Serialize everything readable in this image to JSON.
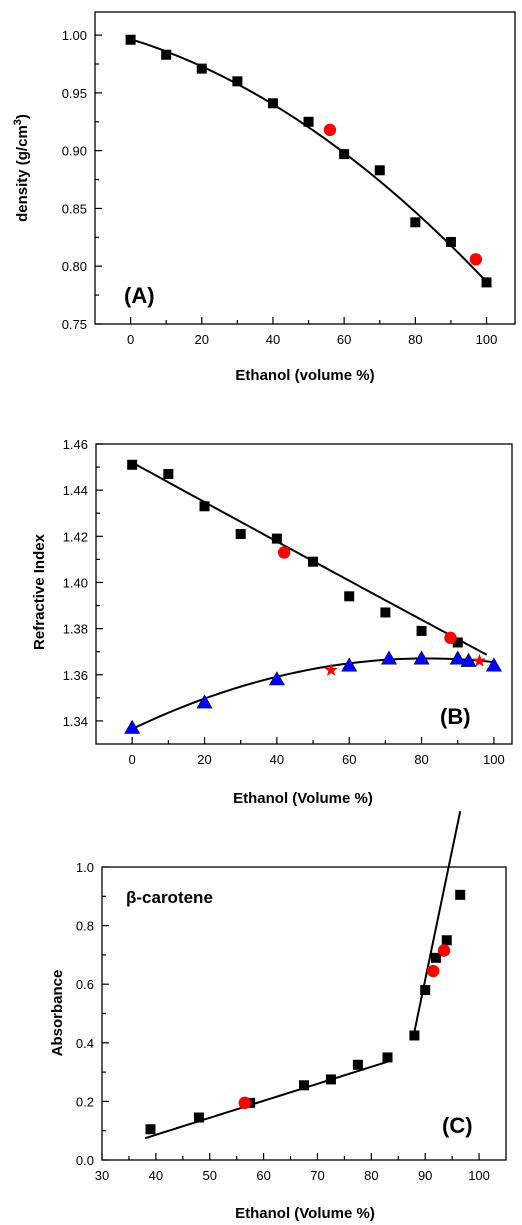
{
  "chart_data": [
    {
      "type": "scatter",
      "panel_label": "(A)",
      "xlabel": "Ethanol (volume %)",
      "ylabel_main": "density (g/cm",
      "ylabel_sup": "3",
      "ylabel_close": ")",
      "xlim": [
        -10,
        108
      ],
      "ylim": [
        0.75,
        1.02
      ],
      "xticks": [
        0,
        20,
        40,
        60,
        80,
        100
      ],
      "yticks": [
        0.75,
        0.8,
        0.85,
        0.9,
        0.95,
        1.0
      ],
      "xtick_labels": [
        "0",
        "20",
        "40",
        "60",
        "80",
        "100"
      ],
      "ytick_labels": [
        "0.75",
        "0.80",
        "0.85",
        "0.90",
        "0.95",
        "1.00"
      ],
      "series": [
        {
          "marker": "square",
          "color": "#000000",
          "x": [
            0,
            10,
            20,
            30,
            40,
            50,
            60,
            70,
            80,
            90,
            100
          ],
          "y": [
            0.996,
            0.983,
            0.971,
            0.96,
            0.941,
            0.925,
            0.897,
            0.883,
            0.838,
            0.821,
            0.786
          ]
        },
        {
          "marker": "circle",
          "color": "#ff0000",
          "x": [
            56,
            97
          ],
          "y": [
            0.918,
            0.806
          ]
        }
      ],
      "fits": [
        {
          "x": [
            0,
            100
          ],
          "poly": [
            0.9965,
            -0.00095,
            -1.15e-05
          ]
        }
      ]
    },
    {
      "type": "scatter",
      "panel_label": "(B)",
      "xlabel": "Ethanol (Volume %)",
      "ylabel": "Refractive Index",
      "xlim": [
        -10,
        105
      ],
      "ylim": [
        1.33,
        1.46
      ],
      "xticks": [
        0,
        20,
        40,
        60,
        80,
        100
      ],
      "yticks": [
        1.34,
        1.36,
        1.38,
        1.4,
        1.42,
        1.44,
        1.46
      ],
      "xtick_labels": [
        "0",
        "20",
        "40",
        "60",
        "80",
        "100"
      ],
      "ytick_labels": [
        "1.34",
        "1.36",
        "1.38",
        "1.40",
        "1.42",
        "1.44",
        "1.46"
      ],
      "series": [
        {
          "marker": "square",
          "color": "#000000",
          "x": [
            0,
            10,
            20,
            30,
            40,
            50,
            60,
            70,
            80,
            90
          ],
          "y": [
            1.451,
            1.447,
            1.433,
            1.421,
            1.419,
            1.409,
            1.394,
            1.387,
            1.379,
            1.374
          ]
        },
        {
          "marker": "circle",
          "color": "#ff0000",
          "x": [
            42,
            88
          ],
          "y": [
            1.413,
            1.376
          ]
        },
        {
          "marker": "triangle",
          "color": "#0000ff",
          "x": [
            0,
            20,
            40,
            60,
            71,
            80,
            90,
            93,
            100
          ],
          "y": [
            1.337,
            1.348,
            1.358,
            1.364,
            1.367,
            1.367,
            1.367,
            1.366,
            1.364
          ]
        },
        {
          "marker": "star",
          "color": "#ff0000",
          "x": [
            55,
            96
          ],
          "y": [
            1.362,
            1.366
          ]
        }
      ],
      "fits": [
        {
          "x": [
            0,
            98
          ],
          "poly": [
            1.452,
            -0.00086,
            1e-07
          ]
        },
        {
          "x": [
            0,
            100
          ],
          "poly": [
            1.3365,
            0.00075,
            -4.6e-06
          ]
        }
      ]
    },
    {
      "type": "scatter",
      "panel_label": "(C)",
      "annotation": "β-carotene",
      "xlabel": "Ethanol (Volume %)",
      "ylabel": "Absorbance",
      "xlim": [
        30,
        105
      ],
      "ylim": [
        0.0,
        1.0
      ],
      "xticks": [
        30,
        40,
        50,
        60,
        70,
        80,
        90,
        100
      ],
      "yticks": [
        0.0,
        0.2,
        0.4,
        0.6,
        0.8,
        1.0
      ],
      "xtick_labels": [
        "30",
        "40",
        "50",
        "60",
        "70",
        "80",
        "90",
        "100"
      ],
      "ytick_labels": [
        "0.0",
        "0.2",
        "0.4",
        "0.6",
        "0.8",
        "1.0"
      ],
      "series": [
        {
          "marker": "square",
          "color": "#000000",
          "x": [
            39,
            48,
            57.5,
            67.5,
            72.5,
            77.5,
            83,
            88,
            90,
            92,
            94,
            96.5
          ],
          "y": [
            0.105,
            0.145,
            0.195,
            0.255,
            0.275,
            0.325,
            0.35,
            0.425,
            0.58,
            0.69,
            0.75,
            0.905
          ]
        },
        {
          "marker": "circle",
          "color": "#ff0000",
          "x": [
            56.5,
            91.5,
            93.5
          ],
          "y": [
            0.195,
            0.645,
            0.715
          ]
        }
      ],
      "fits": [
        {
          "x": [
            38,
            83
          ],
          "poly": [
            -0.146,
            0.0058
          ]
        },
        {
          "x": [
            88,
            96.5
          ],
          "poly": [
            -7.35,
            0.0885
          ]
        }
      ]
    }
  ]
}
